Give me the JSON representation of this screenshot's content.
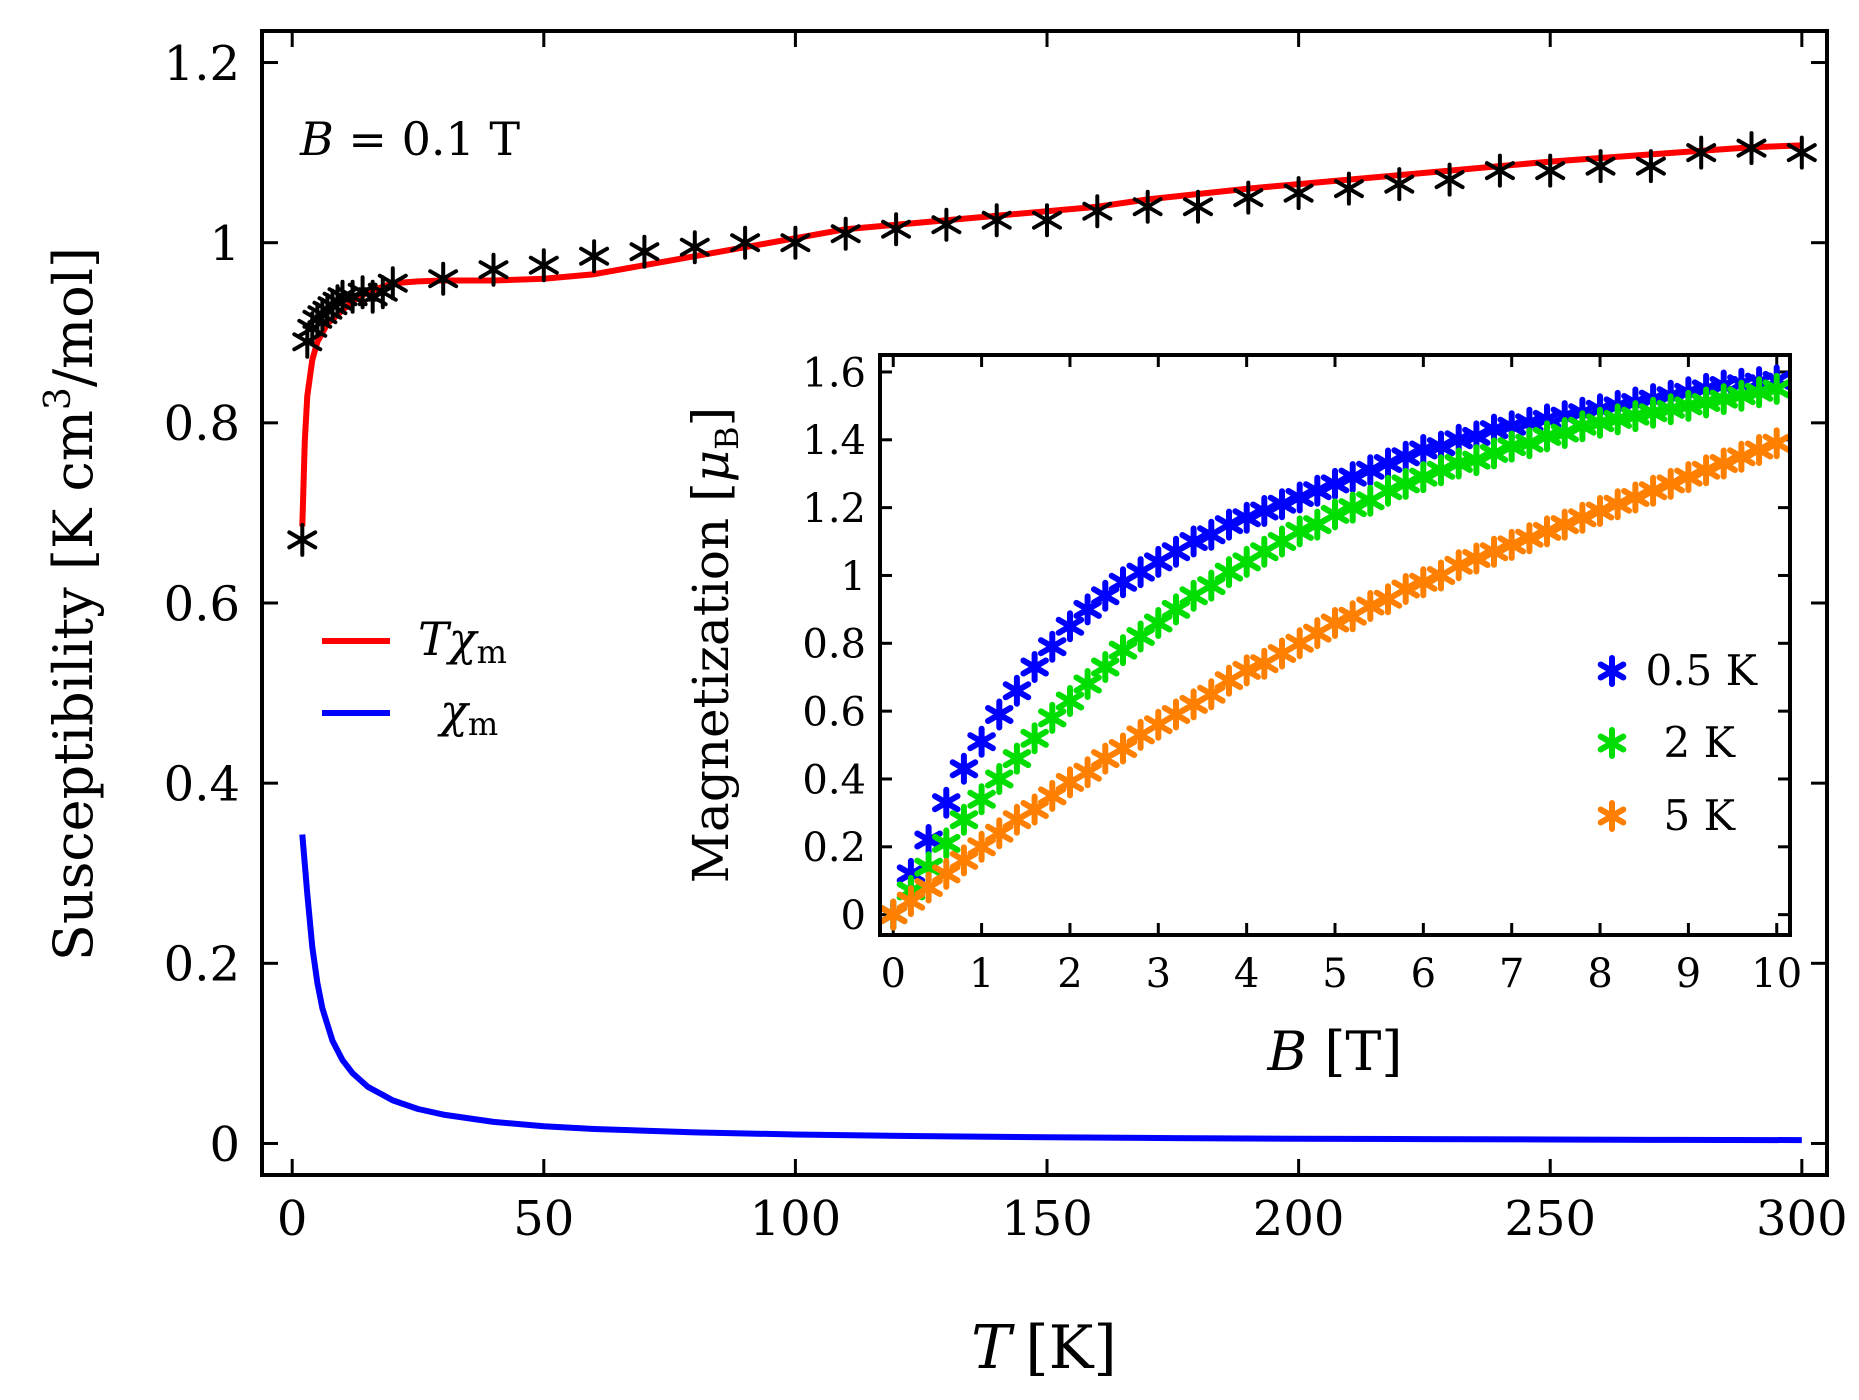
{
  "chart_data": [
    {
      "type": "line",
      "name": "main",
      "title": "",
      "xlabel": "T [K]",
      "xlabel_var": "T",
      "xlabel_unit": "[K]",
      "ylabel": "Susceptibility [K cm³/mol]",
      "ylabel_pre": "Susceptibility [K cm",
      "ylabel_sup": "3",
      "ylabel_post": "/mol]",
      "xlim": [
        -6,
        305
      ],
      "ylim": [
        -0.035,
        1.235
      ],
      "xticks": [
        0,
        50,
        100,
        150,
        200,
        250,
        300
      ],
      "yticks": [
        0,
        0.2,
        0.4,
        0.6,
        0.8,
        1,
        1.2
      ],
      "xtick_labels": [
        "0",
        "50",
        "100",
        "150",
        "200",
        "250",
        "300"
      ],
      "ytick_labels": [
        "0",
        "0.2",
        "0.4",
        "0.6",
        "0.8",
        "1",
        "1.2"
      ],
      "annotation": {
        "var": "B",
        "rest": " = 0.1 T"
      },
      "legend": {
        "position": "center-left",
        "entries": [
          {
            "series": "Tchi",
            "label_main": "Tχ",
            "label_sub": "m",
            "color": "#ff0000"
          },
          {
            "series": "chi",
            "label_main": "χ",
            "label_sub": "m",
            "color": "#0000ff"
          }
        ]
      },
      "series": [
        {
          "id": "data",
          "name": "measured Tχ",
          "kind": "scatter",
          "marker": "star",
          "color": "#000000",
          "x": [
            2,
            3,
            4,
            5,
            6,
            7,
            8,
            9,
            10,
            12,
            14,
            16,
            18,
            20,
            30,
            40,
            50,
            60,
            70,
            80,
            90,
            100,
            110,
            120,
            130,
            140,
            150,
            160,
            170,
            180,
            190,
            200,
            210,
            220,
            230,
            240,
            250,
            260,
            270,
            280,
            290,
            300
          ],
          "y": [
            0.67,
            0.89,
            0.905,
            0.915,
            0.92,
            0.925,
            0.93,
            0.935,
            0.94,
            0.94,
            0.945,
            0.94,
            0.945,
            0.955,
            0.96,
            0.97,
            0.975,
            0.985,
            0.99,
            0.995,
            1.0,
            1.0,
            1.01,
            1.015,
            1.02,
            1.025,
            1.025,
            1.035,
            1.04,
            1.04,
            1.05,
            1.055,
            1.06,
            1.065,
            1.07,
            1.08,
            1.08,
            1.085,
            1.085,
            1.1,
            1.105,
            1.1
          ]
        },
        {
          "id": "Tchi",
          "name": "Tχm",
          "kind": "line",
          "color": "#ff0000",
          "x": [
            2,
            2.5,
            3,
            4,
            5,
            6,
            7,
            8,
            10,
            12,
            15,
            20,
            25,
            30,
            40,
            50,
            60,
            70,
            80,
            90,
            100,
            110,
            120,
            130,
            140,
            150,
            160,
            170,
            180,
            190,
            200,
            210,
            220,
            230,
            240,
            250,
            260,
            270,
            280,
            290,
            300
          ],
          "y": [
            0.685,
            0.78,
            0.83,
            0.87,
            0.89,
            0.9,
            0.91,
            0.915,
            0.925,
            0.935,
            0.945,
            0.955,
            0.957,
            0.958,
            0.958,
            0.96,
            0.965,
            0.975,
            0.985,
            0.995,
            1.005,
            1.015,
            1.02,
            1.025,
            1.03,
            1.035,
            1.04,
            1.048,
            1.054,
            1.06,
            1.065,
            1.07,
            1.075,
            1.08,
            1.085,
            1.09,
            1.094,
            1.098,
            1.102,
            1.106,
            1.108
          ]
        },
        {
          "id": "chi",
          "name": "χm",
          "kind": "line",
          "color": "#0000ff",
          "x": [
            2,
            2.5,
            3,
            4,
            5,
            6,
            8,
            10,
            12,
            15,
            20,
            25,
            30,
            40,
            50,
            60,
            80,
            100,
            125,
            150,
            175,
            200,
            225,
            250,
            275,
            300
          ],
          "y": [
            0.343,
            0.31,
            0.277,
            0.218,
            0.178,
            0.15,
            0.114,
            0.0925,
            0.078,
            0.063,
            0.0478,
            0.0383,
            0.032,
            0.024,
            0.0192,
            0.0161,
            0.0123,
            0.01,
            0.0082,
            0.0069,
            0.006,
            0.0053,
            0.0048,
            0.0044,
            0.004,
            0.0037
          ]
        }
      ]
    },
    {
      "type": "scatter",
      "name": "inset",
      "title": "",
      "xlabel": "B [T]",
      "xlabel_var": "B",
      "xlabel_unit": " [T]",
      "ylabel": "Magnetization [μB]",
      "ylabel_pre": "Magnetization [",
      "ylabel_var": "μ",
      "ylabel_sub": "B",
      "ylabel_post": "]",
      "xlim": [
        -0.15,
        10.15
      ],
      "ylim": [
        -0.06,
        1.65
      ],
      "xticks": [
        0,
        1,
        2,
        3,
        4,
        5,
        6,
        7,
        8,
        9,
        10
      ],
      "yticks": [
        0,
        0.2,
        0.4,
        0.6,
        0.8,
        1,
        1.2,
        1.4,
        1.6
      ],
      "xtick_labels": [
        "0",
        "1",
        "2",
        "3",
        "4",
        "5",
        "6",
        "7",
        "8",
        "9",
        "10"
      ],
      "ytick_labels": [
        "0",
        "0.2",
        "0.4",
        "0.6",
        "0.8",
        "1",
        "1.2",
        "1.4",
        "1.6"
      ],
      "legend": {
        "position": "lower-right",
        "entries": [
          {
            "series": "s05",
            "label": "0.5 K",
            "color": "#0000ff"
          },
          {
            "series": "s2",
            "label": "2 K",
            "color": "#00dd00"
          },
          {
            "series": "s5",
            "label": "5 K",
            "color": "#ff8000"
          }
        ]
      },
      "series": [
        {
          "id": "s05",
          "name": "0.5 K",
          "color": "#0000ff",
          "marker": "star",
          "x": [
            0,
            0.2,
            0.4,
            0.6,
            0.8,
            1.0,
            1.2,
            1.4,
            1.6,
            1.8,
            2.0,
            2.2,
            2.4,
            2.6,
            2.8,
            3.0,
            3.2,
            3.4,
            3.6,
            3.8,
            4.0,
            4.2,
            4.4,
            4.6,
            4.8,
            5.0,
            5.2,
            5.4,
            5.6,
            5.8,
            6.0,
            6.2,
            6.4,
            6.6,
            6.8,
            7.0,
            7.2,
            7.4,
            7.6,
            7.8,
            8.0,
            8.2,
            8.4,
            8.6,
            8.8,
            9.0,
            9.2,
            9.4,
            9.6,
            9.8,
            10.0
          ],
          "y": [
            0,
            0.12,
            0.22,
            0.33,
            0.43,
            0.51,
            0.59,
            0.66,
            0.73,
            0.79,
            0.85,
            0.9,
            0.94,
            0.98,
            1.01,
            1.04,
            1.07,
            1.1,
            1.12,
            1.15,
            1.17,
            1.19,
            1.21,
            1.23,
            1.25,
            1.27,
            1.29,
            1.31,
            1.33,
            1.35,
            1.37,
            1.38,
            1.4,
            1.41,
            1.43,
            1.44,
            1.45,
            1.46,
            1.47,
            1.48,
            1.49,
            1.5,
            1.51,
            1.52,
            1.53,
            1.54,
            1.55,
            1.56,
            1.565,
            1.57,
            1.575
          ]
        },
        {
          "id": "s2",
          "name": "2 K",
          "color": "#00dd00",
          "marker": "star",
          "x": [
            0,
            0.2,
            0.4,
            0.6,
            0.8,
            1.0,
            1.2,
            1.4,
            1.6,
            1.8,
            2.0,
            2.2,
            2.4,
            2.6,
            2.8,
            3.0,
            3.2,
            3.4,
            3.6,
            3.8,
            4.0,
            4.2,
            4.4,
            4.6,
            4.8,
            5.0,
            5.2,
            5.4,
            5.6,
            5.8,
            6.0,
            6.2,
            6.4,
            6.6,
            6.8,
            7.0,
            7.2,
            7.4,
            7.6,
            7.8,
            8.0,
            8.2,
            8.4,
            8.6,
            8.8,
            9.0,
            9.2,
            9.4,
            9.6,
            9.8,
            10.0
          ],
          "y": [
            0,
            0.07,
            0.14,
            0.21,
            0.28,
            0.34,
            0.4,
            0.46,
            0.52,
            0.58,
            0.63,
            0.68,
            0.73,
            0.78,
            0.82,
            0.86,
            0.9,
            0.94,
            0.97,
            1.01,
            1.04,
            1.07,
            1.1,
            1.13,
            1.15,
            1.18,
            1.2,
            1.22,
            1.25,
            1.27,
            1.29,
            1.31,
            1.33,
            1.34,
            1.36,
            1.38,
            1.39,
            1.41,
            1.42,
            1.44,
            1.45,
            1.46,
            1.47,
            1.48,
            1.49,
            1.5,
            1.51,
            1.52,
            1.53,
            1.54,
            1.55
          ]
        },
        {
          "id": "s5",
          "name": "5 K",
          "color": "#ff8000",
          "marker": "star",
          "x": [
            0,
            0.2,
            0.4,
            0.6,
            0.8,
            1.0,
            1.2,
            1.4,
            1.6,
            1.8,
            2.0,
            2.2,
            2.4,
            2.6,
            2.8,
            3.0,
            3.2,
            3.4,
            3.6,
            3.8,
            4.0,
            4.2,
            4.4,
            4.6,
            4.8,
            5.0,
            5.2,
            5.4,
            5.6,
            5.8,
            6.0,
            6.2,
            6.4,
            6.6,
            6.8,
            7.0,
            7.2,
            7.4,
            7.6,
            7.8,
            8.0,
            8.2,
            8.4,
            8.6,
            8.8,
            9.0,
            9.2,
            9.4,
            9.6,
            9.8,
            10.0
          ],
          "y": [
            0,
            0.04,
            0.08,
            0.12,
            0.16,
            0.2,
            0.24,
            0.28,
            0.31,
            0.35,
            0.39,
            0.42,
            0.46,
            0.49,
            0.53,
            0.56,
            0.59,
            0.62,
            0.65,
            0.69,
            0.72,
            0.74,
            0.77,
            0.8,
            0.83,
            0.86,
            0.88,
            0.91,
            0.93,
            0.96,
            0.98,
            1.0,
            1.03,
            1.05,
            1.07,
            1.09,
            1.11,
            1.13,
            1.15,
            1.17,
            1.19,
            1.21,
            1.23,
            1.25,
            1.27,
            1.29,
            1.31,
            1.33,
            1.35,
            1.37,
            1.39
          ]
        }
      ]
    }
  ]
}
